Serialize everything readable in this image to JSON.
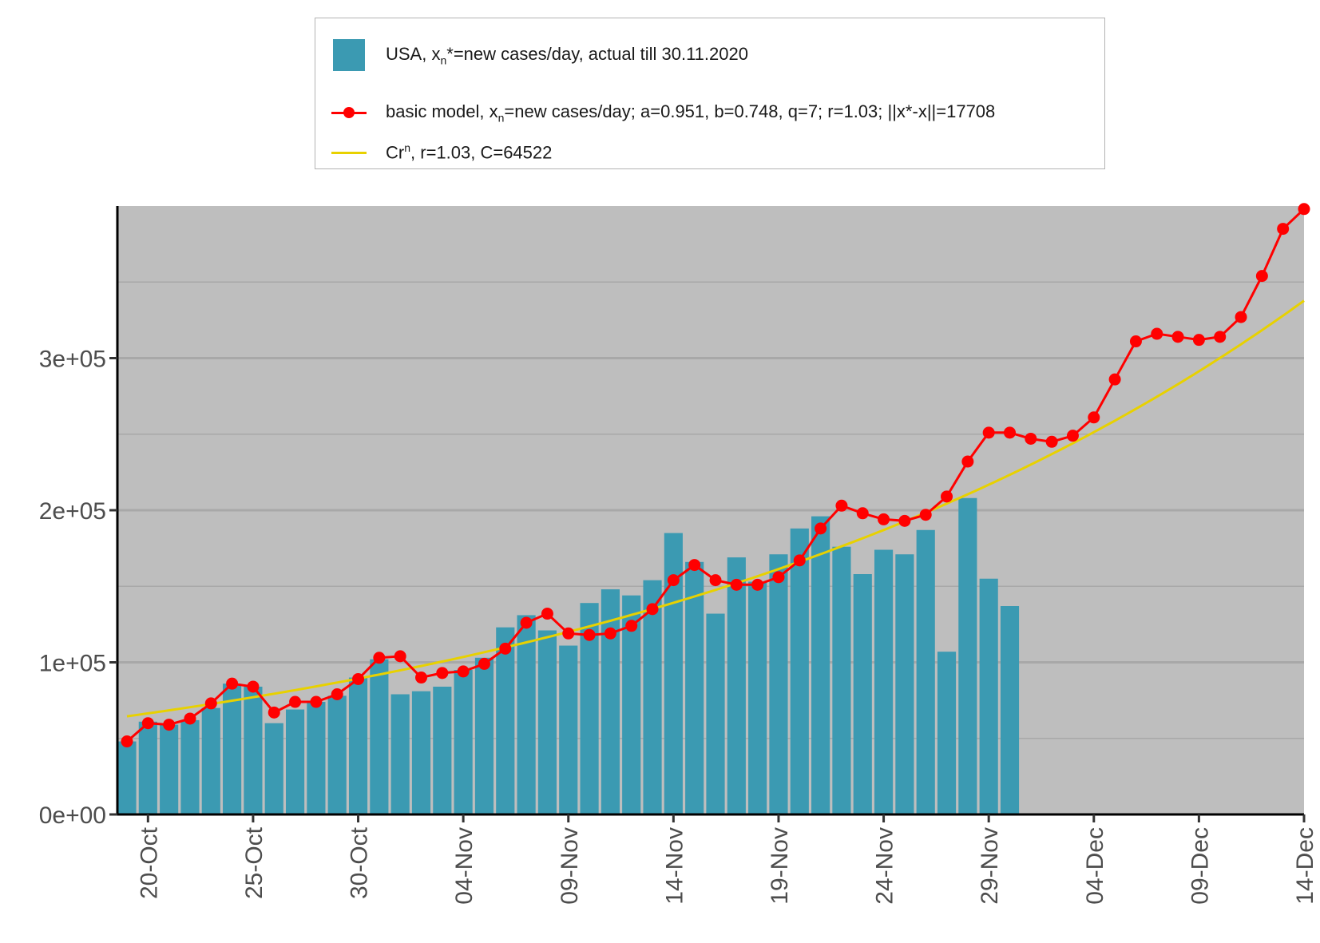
{
  "legend": {
    "position": "top",
    "bar": {
      "pre": "USA, x",
      "sub": "n",
      "post": "*=new cases/day, actual till 30.11.2020"
    },
    "model": {
      "pre": "basic model,  x",
      "sub": "n",
      "post": "=new cases/day; a=0.951, b=0.748, q=7;  r=1.03; ||x*-x||=17708"
    },
    "fit": {
      "pre": "Cr",
      "sup": "n",
      "post": ", r=1.03, C=64522"
    }
  },
  "colors": {
    "bars": "#3b9ab2",
    "model": "#ff0000",
    "fit": "#e8d100",
    "panel": "#bebebe",
    "grid": "#a8a8a8"
  },
  "chart_data": {
    "type": "bar",
    "x_axis": {
      "type": "date",
      "range": [
        "2020-10-19",
        "2020-12-14"
      ]
    },
    "x_ticks": [
      "20-Oct",
      "25-Oct",
      "30-Oct",
      "04-Nov",
      "09-Nov",
      "14-Nov",
      "19-Nov",
      "24-Nov",
      "29-Nov",
      "04-Dec",
      "09-Dec",
      "14-Dec"
    ],
    "x_tick_dates": [
      "2020-10-20",
      "2020-10-25",
      "2020-10-30",
      "2020-11-04",
      "2020-11-09",
      "2020-11-14",
      "2020-11-19",
      "2020-11-24",
      "2020-11-29",
      "2020-12-04",
      "2020-12-09",
      "2020-12-14"
    ],
    "ylim": [
      0,
      400000
    ],
    "y_ticks": [
      0,
      100000,
      200000,
      300000
    ],
    "y_tick_labels": [
      "0e+00",
      "1e+05",
      "2e+05",
      "3e+05"
    ],
    "grid": true,
    "series": [
      {
        "type": "bar",
        "start_date": "2020-10-19",
        "values": [
          48000,
          61000,
          59000,
          62000,
          70000,
          86000,
          84000,
          60000,
          69000,
          74000,
          78000,
          90000,
          102000,
          79000,
          81000,
          84000,
          95000,
          103000,
          123000,
          131000,
          121000,
          111000,
          139000,
          148000,
          144000,
          154000,
          185000,
          166000,
          132000,
          169000,
          153000,
          171000,
          188000,
          196000,
          176000,
          158000,
          174000,
          171000,
          187000,
          107000,
          208000,
          155000,
          137000
        ]
      },
      {
        "type": "line",
        "markers": true,
        "start_date": "2020-10-19",
        "values": [
          48000,
          60000,
          59000,
          63000,
          73000,
          86000,
          84000,
          67000,
          74000,
          74000,
          79000,
          89000,
          103000,
          104000,
          90000,
          93000,
          94000,
          99000,
          109000,
          126000,
          132000,
          119000,
          118000,
          119000,
          124000,
          135000,
          154000,
          164000,
          154000,
          151000,
          151000,
          156000,
          167000,
          188000,
          203000,
          198000,
          194000,
          193000,
          197000,
          209000,
          232000,
          251000,
          251000,
          247000,
          245000,
          249000,
          261000,
          286000,
          311000,
          316000,
          314000,
          312000,
          314000,
          327000,
          354000,
          385000,
          398000
        ]
      },
      {
        "type": "line",
        "markers": false,
        "start_date": "2020-10-19",
        "r": 1.03,
        "C": 64522
      }
    ]
  }
}
